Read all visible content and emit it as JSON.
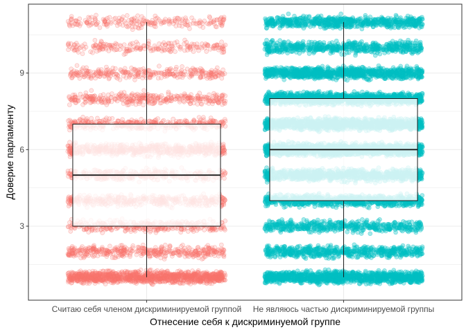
{
  "chart_data": {
    "type": "boxplot-jitter",
    "title": "",
    "xlabel": "Отнесение себя к дискриминуемой группе",
    "ylabel": "Доверие парламенту",
    "categories": [
      "Считаю себя членом дискриминируемой группой",
      "Не являюсь частью дискриминируемой группы"
    ],
    "ylim": [
      0.1,
      11.7
    ],
    "yticks": [
      3,
      6,
      9
    ],
    "grid": true,
    "legend": "none",
    "boxes": [
      {
        "category": "Считаю себя членом дискриминируемой группой",
        "color": "#F8766D",
        "whisker_low": 1,
        "q1": 3,
        "median": 5,
        "q3": 7,
        "whisker_high": 11,
        "points_density": "sparse"
      },
      {
        "category": "Не являюсь частью дискриминируемой группы",
        "color": "#00BFC4",
        "whisker_low": 1,
        "q1": 4,
        "median": 6,
        "q3": 8,
        "whisker_high": 11,
        "points_density": "dense"
      }
    ]
  }
}
